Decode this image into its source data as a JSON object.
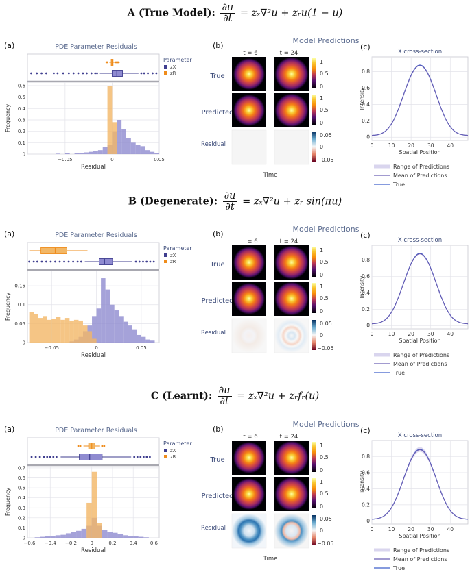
{
  "sections": [
    {
      "id": "A",
      "heading": "A (True Model):",
      "frac_num": "∂u",
      "frac_den": "∂t",
      "rhs": "= zₓ∇²u + zᵣu(1 − u)",
      "panel_a": {
        "tag": "(a)",
        "title": "PDE Parameter Residuals",
        "legend_title": "Parameter",
        "legend": [
          "zX",
          "zR"
        ],
        "xlabel": "Residual",
        "ylabel": "Frequency",
        "x_ticks": [
          "−0.05",
          "0",
          "0.05"
        ],
        "x_tick_values": [
          -0.05,
          0,
          0.05
        ],
        "xlim": [
          -0.09,
          0.05
        ],
        "y_ticks": [
          "0",
          "0.1",
          "0.2",
          "0.3",
          "0.4",
          "0.5",
          "0.6"
        ],
        "ylim": [
          0,
          0.63
        ],
        "bin_width": 0.005,
        "zX_hist": [
          [
            -0.06,
            0.004
          ],
          [
            -0.05,
            0.006
          ],
          [
            -0.04,
            0.008
          ],
          [
            -0.035,
            0.012
          ],
          [
            -0.03,
            0.015
          ],
          [
            -0.025,
            0.02
          ],
          [
            -0.02,
            0.028
          ],
          [
            -0.015,
            0.035
          ],
          [
            -0.01,
            0.06
          ],
          [
            -0.005,
            0.08
          ],
          [
            0,
            0.2
          ],
          [
            0.005,
            0.3
          ],
          [
            0.01,
            0.22
          ],
          [
            0.015,
            0.14
          ],
          [
            0.02,
            0.1
          ],
          [
            0.025,
            0.08
          ],
          [
            0.03,
            0.07
          ],
          [
            0.035,
            0.035
          ],
          [
            0.04,
            0.02
          ],
          [
            0.045,
            0.006
          ]
        ],
        "zR_hist": [
          [
            -0.005,
            0.6
          ],
          [
            0,
            0.28
          ]
        ],
        "box_zX": {
          "min": -0.013,
          "q1": 0.0,
          "median": 0.005,
          "q3": 0.011,
          "max": 0.028,
          "outliers": [
            -0.086,
            -0.08,
            -0.075,
            -0.07,
            -0.062,
            -0.058,
            -0.052,
            -0.046,
            -0.041,
            -0.036,
            -0.031,
            -0.027,
            -0.022,
            -0.018,
            -0.016,
            0.031,
            0.034,
            0.038,
            0.043,
            0.047
          ]
        },
        "box_zR": {
          "min": -0.003,
          "q1": -0.001,
          "median": 0.0,
          "q3": 0.001,
          "max": 0.003,
          "outliers": [
            -0.006,
            -0.005,
            0.004,
            0.005,
            0.006,
            0.007
          ]
        }
      },
      "panel_b": {
        "tag": "(b)",
        "title": "Model Predictions",
        "col_labels": [
          "t = 6",
          "t = 24"
        ],
        "row_labels": [
          "True",
          "Predicted",
          "Residual"
        ],
        "cb_ticks": [
          "1",
          "0.5",
          "0"
        ],
        "res_ticks": [
          "0.05",
          "0",
          "−0.05"
        ],
        "xlabel": "Time",
        "residual_pattern": "flat"
      },
      "panel_c": {
        "tag": "(c)",
        "title": "X cross-section",
        "xlabel": "Spatial Position",
        "ylabel": "Intensity",
        "x_ticks": [
          "0",
          "10",
          "20",
          "30",
          "40"
        ],
        "x_tick_values": [
          0,
          10,
          20,
          30,
          40
        ],
        "xlim": [
          0,
          49
        ],
        "y_ticks": [
          "0",
          "0.2",
          "0.4",
          "0.6",
          "0.8"
        ],
        "y_tick_values": [
          0,
          0.2,
          0.4,
          0.6,
          0.8
        ],
        "ylim": [
          -0.04,
          0.98
        ],
        "peak": 0.88,
        "band": 0.0,
        "legend": [
          "Range of Predictions",
          "Mean of Predictions",
          "True"
        ]
      }
    },
    {
      "id": "B",
      "heading": "B (Degenerate):",
      "frac_num": "∂u",
      "frac_den": "∂t",
      "rhs": "= zₓ∇²u + zᵣ sin(πu)",
      "panel_a": {
        "tag": "(a)",
        "title": "PDE Parameter Residuals",
        "legend_title": "Parameter",
        "legend": [
          "zX",
          "zR"
        ],
        "xlabel": "Residual",
        "ylabel": "Frequency",
        "x_ticks": [
          "−0.05",
          "0",
          "0.05"
        ],
        "x_tick_values": [
          -0.05,
          0,
          0.05
        ],
        "xlim": [
          -0.077,
          0.07
        ],
        "y_ticks": [
          "0",
          "0.05",
          "0.1",
          "0.15"
        ],
        "ylim": [
          0,
          0.19
        ],
        "bin_width": 0.005,
        "zX_hist": [
          [
            -0.03,
            0.003
          ],
          [
            -0.025,
            0.008
          ],
          [
            -0.02,
            0.015
          ],
          [
            -0.015,
            0.03
          ],
          [
            -0.01,
            0.045
          ],
          [
            -0.005,
            0.07
          ],
          [
            0,
            0.09
          ],
          [
            0.005,
            0.17
          ],
          [
            0.01,
            0.14
          ],
          [
            0.015,
            0.1
          ],
          [
            0.02,
            0.085
          ],
          [
            0.025,
            0.07
          ],
          [
            0.03,
            0.055
          ],
          [
            0.035,
            0.045
          ],
          [
            0.04,
            0.035
          ],
          [
            0.045,
            0.02
          ],
          [
            0.05,
            0.015
          ],
          [
            0.055,
            0.008
          ],
          [
            0.06,
            0.005
          ]
        ],
        "zR_hist": [
          [
            -0.075,
            0.08
          ],
          [
            -0.07,
            0.075
          ],
          [
            -0.065,
            0.065
          ],
          [
            -0.06,
            0.07
          ],
          [
            -0.055,
            0.06
          ],
          [
            -0.05,
            0.063
          ],
          [
            -0.045,
            0.068
          ],
          [
            -0.04,
            0.06
          ],
          [
            -0.035,
            0.065
          ],
          [
            -0.03,
            0.058
          ],
          [
            -0.025,
            0.06
          ],
          [
            -0.02,
            0.058
          ],
          [
            -0.015,
            0.045
          ],
          [
            -0.01,
            0.03
          ],
          [
            -0.005,
            0.01
          ]
        ],
        "box_zX": {
          "min": -0.013,
          "q1": 0.003,
          "median": 0.009,
          "q3": 0.018,
          "max": 0.04,
          "outliers": [
            -0.075,
            -0.07,
            -0.066,
            -0.061,
            -0.056,
            -0.051,
            -0.046,
            -0.041,
            -0.036,
            -0.031,
            -0.026,
            -0.021,
            -0.017,
            0.044,
            0.048,
            0.052,
            0.056,
            0.06,
            0.064
          ]
        },
        "box_zR": {
          "min": -0.075,
          "q1": -0.062,
          "median": -0.046,
          "q3": -0.033,
          "max": -0.01,
          "outliers": []
        }
      },
      "panel_b": {
        "tag": "(b)",
        "title": "Model Predictions",
        "col_labels": [
          "t = 6",
          "t = 24"
        ],
        "row_labels": [
          "True",
          "Predicted",
          "Residual"
        ],
        "cb_ticks": [
          "1",
          "0.5",
          "0"
        ],
        "res_ticks": [
          "0.05",
          "0",
          "−0.05"
        ],
        "xlabel": "",
        "residual_pattern": "rings"
      },
      "panel_c": {
        "tag": "(c)",
        "title": "X cross-section",
        "xlabel": "Spatial Position",
        "ylabel": "Intensity",
        "x_ticks": [
          "0",
          "10",
          "20",
          "30",
          "40"
        ],
        "x_tick_values": [
          0,
          10,
          20,
          30,
          40
        ],
        "xlim": [
          0,
          49
        ],
        "y_ticks": [
          "0",
          "0.2",
          "0.4",
          "0.6",
          "0.8"
        ],
        "y_tick_values": [
          0,
          0.2,
          0.4,
          0.6,
          0.8
        ],
        "ylim": [
          -0.04,
          0.98
        ],
        "peak": 0.88,
        "band": 0.0,
        "legend": [
          "Range of Predictions",
          "Mean of Predictions",
          "True"
        ]
      }
    },
    {
      "id": "C",
      "heading": "C (Learnt):",
      "frac_num": "∂u",
      "frac_den": "∂t",
      "rhs": "= zₓ∇²u + zᵣfᵣ(u)",
      "panel_a": {
        "tag": "(a)",
        "title": "PDE Parameter Residuals",
        "legend_title": "Parameter",
        "legend": [
          "zX",
          "zR"
        ],
        "xlabel": "Residual",
        "ylabel": "Frequency",
        "x_ticks": [
          "−0.6",
          "−0.4",
          "−0.2",
          "0",
          "0.2",
          "0.4",
          "0.6"
        ],
        "x_tick_values": [
          -0.6,
          -0.4,
          -0.2,
          0,
          0.2,
          0.4,
          0.6
        ],
        "xlim": [
          -0.62,
          0.65
        ],
        "y_ticks": [
          "0",
          "0.1",
          "0.2",
          "0.3",
          "0.4",
          "0.5",
          "0.6",
          "0.7"
        ],
        "ylim": [
          0,
          0.72
        ],
        "bin_width": 0.05,
        "zX_hist": [
          [
            -0.55,
            0.005
          ],
          [
            -0.5,
            0.01
          ],
          [
            -0.45,
            0.02
          ],
          [
            -0.4,
            0.02
          ],
          [
            -0.35,
            0.025
          ],
          [
            -0.3,
            0.03
          ],
          [
            -0.25,
            0.045
          ],
          [
            -0.2,
            0.06
          ],
          [
            -0.15,
            0.07
          ],
          [
            -0.1,
            0.09
          ],
          [
            -0.05,
            0.12
          ],
          [
            0,
            0.2
          ],
          [
            0.05,
            0.12
          ],
          [
            0.1,
            0.08
          ],
          [
            0.15,
            0.06
          ],
          [
            0.2,
            0.05
          ],
          [
            0.25,
            0.035
          ],
          [
            0.3,
            0.025
          ],
          [
            0.35,
            0.02
          ],
          [
            0.4,
            0.015
          ],
          [
            0.45,
            0.01
          ],
          [
            0.5,
            0.005
          ]
        ],
        "zR_hist": [
          [
            -0.05,
            0.35
          ],
          [
            0,
            0.66
          ],
          [
            0.05,
            0.15
          ]
        ],
        "box_zX": {
          "min": -0.3,
          "q1": -0.12,
          "median": -0.02,
          "q3": 0.1,
          "max": 0.38,
          "outliers": [
            -0.58,
            -0.54,
            -0.5,
            -0.46,
            -0.43,
            -0.4,
            -0.37,
            -0.34,
            0.41,
            0.44,
            0.47,
            0.5,
            0.53,
            0.56
          ]
        },
        "box_zR": {
          "min": -0.08,
          "q1": -0.03,
          "median": 0.0,
          "q3": 0.03,
          "max": 0.08,
          "outliers": [
            -0.13,
            -0.11,
            0.1,
            0.12
          ]
        }
      },
      "panel_b": {
        "tag": "(b)",
        "title": "Model Predictions",
        "col_labels": [
          "t = 6",
          "t = 24"
        ],
        "row_labels": [
          "True",
          "Predicted",
          "Residual"
        ],
        "cb_ticks": [
          "1",
          "0.5",
          "0"
        ],
        "res_ticks": [
          "0.05",
          "0",
          "−0.05"
        ],
        "xlabel": "Time",
        "residual_pattern": "strong_ring"
      },
      "panel_c": {
        "tag": "(c)",
        "title": "X cross-section",
        "xlabel": "Spatial Position",
        "ylabel": "Intensity",
        "x_ticks": [
          "0",
          "10",
          "20",
          "30",
          "40"
        ],
        "x_tick_values": [
          0,
          10,
          20,
          30,
          40
        ],
        "xlim": [
          0,
          49
        ],
        "y_ticks": [
          "0",
          "0.2",
          "0.4",
          "0.6",
          "0.8"
        ],
        "y_tick_values": [
          0,
          0.2,
          0.4,
          0.6,
          0.8
        ],
        "ylim": [
          -0.04,
          1.0
        ],
        "peak": 0.89,
        "band": 0.03,
        "legend": [
          "Range of Predictions",
          "Mean of Predictions",
          "True"
        ]
      }
    }
  ],
  "colors": {
    "zX": "#3f3e8f",
    "zX_fill": "#8f8bd0",
    "zR": "#ef8c1b",
    "zR_fill": "#f2b766",
    "title": "#3b4a78",
    "mean": "#6b5fb4",
    "true": "#3f5fc9",
    "band": "#d9d5ee"
  },
  "chart_data": [
    {
      "type": "bar",
      "title": "PDE Parameter Residuals (A)",
      "xlabel": "Residual",
      "ylabel": "Frequency",
      "xlim": [
        -0.09,
        0.05
      ],
      "ylim": [
        0,
        0.63
      ],
      "series": [
        {
          "name": "zX",
          "x": [
            -0.06,
            -0.05,
            -0.04,
            -0.035,
            -0.03,
            -0.025,
            -0.02,
            -0.015,
            -0.01,
            -0.005,
            0,
            0.005,
            0.01,
            0.015,
            0.02,
            0.025,
            0.03,
            0.035,
            0.04,
            0.045
          ],
          "values": [
            0.004,
            0.006,
            0.008,
            0.012,
            0.015,
            0.02,
            0.028,
            0.035,
            0.06,
            0.08,
            0.2,
            0.3,
            0.22,
            0.14,
            0.1,
            0.08,
            0.07,
            0.035,
            0.02,
            0.006
          ]
        },
        {
          "name": "zR",
          "x": [
            -0.005,
            0
          ],
          "values": [
            0.6,
            0.28
          ]
        }
      ]
    },
    {
      "type": "line",
      "title": "X cross-section (A)",
      "xlabel": "Spatial Position",
      "ylabel": "Intensity",
      "xlim": [
        0,
        49
      ],
      "ylim": [
        -0.04,
        0.98
      ],
      "peak": 0.88
    },
    {
      "type": "bar",
      "title": "PDE Parameter Residuals (B)",
      "xlabel": "Residual",
      "ylabel": "Frequency",
      "xlim": [
        -0.077,
        0.07
      ],
      "ylim": [
        0,
        0.19
      ],
      "series": [
        {
          "name": "zX",
          "x": [
            -0.03,
            -0.025,
            -0.02,
            -0.015,
            -0.01,
            -0.005,
            0,
            0.005,
            0.01,
            0.015,
            0.02,
            0.025,
            0.03,
            0.035,
            0.04,
            0.045,
            0.05,
            0.055,
            0.06
          ],
          "values": [
            0.003,
            0.008,
            0.015,
            0.03,
            0.045,
            0.07,
            0.09,
            0.17,
            0.14,
            0.1,
            0.085,
            0.07,
            0.055,
            0.045,
            0.035,
            0.02,
            0.015,
            0.008,
            0.005
          ]
        },
        {
          "name": "zR",
          "x": [
            -0.075,
            -0.07,
            -0.065,
            -0.06,
            -0.055,
            -0.05,
            -0.045,
            -0.04,
            -0.035,
            -0.03,
            -0.025,
            -0.02,
            -0.015,
            -0.01,
            -0.005
          ],
          "values": [
            0.08,
            0.075,
            0.065,
            0.07,
            0.06,
            0.063,
            0.068,
            0.06,
            0.065,
            0.058,
            0.06,
            0.058,
            0.045,
            0.03,
            0.01
          ]
        }
      ]
    },
    {
      "type": "line",
      "title": "X cross-section (B)",
      "xlabel": "Spatial Position",
      "ylabel": "Intensity",
      "xlim": [
        0,
        49
      ],
      "ylim": [
        -0.04,
        0.98
      ],
      "peak": 0.88
    },
    {
      "type": "bar",
      "title": "PDE Parameter Residuals (C)",
      "xlabel": "Residual",
      "ylabel": "Frequency",
      "xlim": [
        -0.62,
        0.65
      ],
      "ylim": [
        0,
        0.72
      ],
      "series": [
        {
          "name": "zX",
          "x": [
            -0.55,
            -0.5,
            -0.45,
            -0.4,
            -0.35,
            -0.3,
            -0.25,
            -0.2,
            -0.15,
            -0.1,
            -0.05,
            0,
            0.05,
            0.1,
            0.15,
            0.2,
            0.25,
            0.3,
            0.35,
            0.4,
            0.45,
            0.5
          ],
          "values": [
            0.005,
            0.01,
            0.02,
            0.02,
            0.025,
            0.03,
            0.045,
            0.06,
            0.07,
            0.09,
            0.12,
            0.2,
            0.12,
            0.08,
            0.06,
            0.05,
            0.035,
            0.025,
            0.02,
            0.015,
            0.01,
            0.005
          ]
        },
        {
          "name": "zR",
          "x": [
            -0.05,
            0,
            0.05
          ],
          "values": [
            0.35,
            0.66,
            0.15
          ]
        }
      ]
    },
    {
      "type": "line",
      "title": "X cross-section (C)",
      "xlabel": "Spatial Position",
      "ylabel": "Intensity",
      "xlim": [
        0,
        49
      ],
      "ylim": [
        -0.04,
        1.0
      ],
      "peak": 0.89
    }
  ]
}
